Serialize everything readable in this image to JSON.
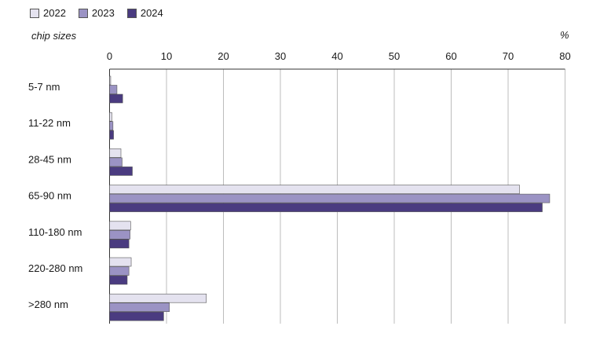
{
  "chart_data": {
    "type": "bar",
    "orientation": "horizontal",
    "ylabel": "chip sizes",
    "unit": "%",
    "categories": [
      "5-7 nm",
      "11-22 nm",
      "28-45 nm",
      "65-90 nm",
      "110-180 nm",
      "220-280 nm",
      ">280 nm"
    ],
    "series": [
      {
        "name": "2022",
        "color": "#e4e2ef",
        "values": [
          0.2,
          0.4,
          2.0,
          72.0,
          3.7,
          3.8,
          17.0
        ]
      },
      {
        "name": "2023",
        "color": "#9b93c4",
        "values": [
          1.3,
          0.6,
          2.2,
          77.3,
          3.6,
          3.4,
          10.5
        ]
      },
      {
        "name": "2024",
        "color": "#4a3b80",
        "values": [
          2.3,
          0.7,
          4.0,
          76.0,
          3.4,
          3.1,
          9.5
        ]
      }
    ],
    "xlim": [
      0,
      80
    ],
    "xticks": [
      0,
      10,
      20,
      30,
      40,
      50,
      60,
      70,
      80
    ],
    "grid": true,
    "legend_position": "top-left"
  }
}
